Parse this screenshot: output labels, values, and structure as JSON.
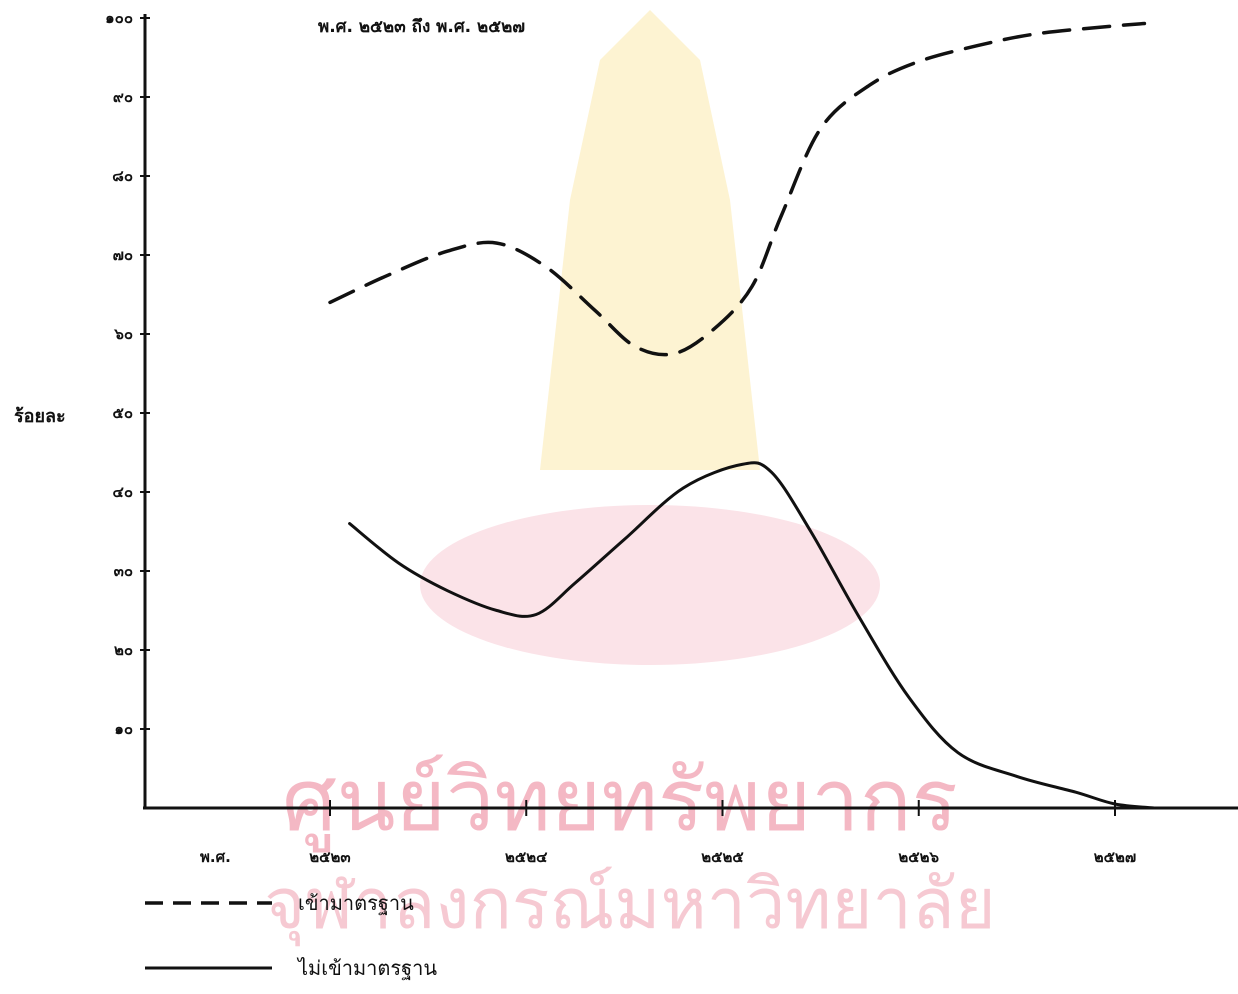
{
  "watermark": {
    "line1": "ศูนย์วิทยทรัพยากร",
    "line2": "จุฬาลงกรณ์มหาวิทยาลัย"
  },
  "chart_data": {
    "type": "line",
    "title": "พ.ศ. ๒๕๒๓ ถึง พ.ศ. ๒๕๒๗",
    "ylabel": "ร้อยละ",
    "xlabel": "พ.ศ.",
    "ylim": [
      0,
      100
    ],
    "yticks": [
      "๑๐",
      "๒๐",
      "๓๐",
      "๔๐",
      "๕๐",
      "๖๐",
      "๗๐",
      "๘๐",
      "๙๐",
      "๑๐๐"
    ],
    "xticks": [
      "๒๕๒๓",
      "๒๕๒๔",
      "๒๕๒๕",
      "๒๕๒๖",
      "๒๕๒๗"
    ],
    "grid": false,
    "legend_position": "bottom-left",
    "series": [
      {
        "name": "เข้ามาตรฐาน",
        "style": "dashed",
        "color": "#111111",
        "points": [
          [
            2523.0,
            64.0
          ],
          [
            2523.3,
            67.5
          ],
          [
            2523.6,
            70.5
          ],
          [
            2523.85,
            71.5
          ],
          [
            2524.1,
            68.5
          ],
          [
            2524.35,
            63.0
          ],
          [
            2524.55,
            58.5
          ],
          [
            2524.75,
            57.5
          ],
          [
            2524.95,
            60.5
          ],
          [
            2525.15,
            66.0
          ],
          [
            2525.3,
            75.0
          ],
          [
            2525.5,
            86.0
          ],
          [
            2525.75,
            91.5
          ],
          [
            2526.0,
            94.5
          ],
          [
            2526.3,
            96.5
          ],
          [
            2526.6,
            98.0
          ],
          [
            2527.0,
            99.0
          ],
          [
            2527.15,
            99.3
          ]
        ]
      },
      {
        "name": "ไม่เข้ามาตรฐาน",
        "style": "solid",
        "color": "#111111",
        "points": [
          [
            2523.1,
            36.0
          ],
          [
            2523.35,
            31.0
          ],
          [
            2523.6,
            27.5
          ],
          [
            2523.85,
            25.0
          ],
          [
            2524.05,
            24.5
          ],
          [
            2524.25,
            28.5
          ],
          [
            2524.5,
            34.0
          ],
          [
            2524.8,
            40.5
          ],
          [
            2525.1,
            43.5
          ],
          [
            2525.25,
            42.5
          ],
          [
            2525.45,
            35.0
          ],
          [
            2525.7,
            24.0
          ],
          [
            2525.95,
            14.0
          ],
          [
            2526.2,
            7.0
          ],
          [
            2526.5,
            4.0
          ],
          [
            2526.8,
            2.0
          ],
          [
            2527.0,
            0.5
          ],
          [
            2527.2,
            0.0
          ]
        ]
      }
    ]
  }
}
